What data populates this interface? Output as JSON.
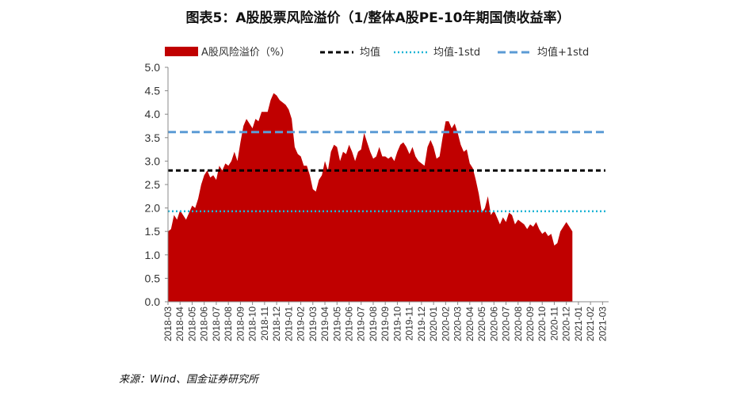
{
  "title": "图表5：A股股票风险溢价（1/整体A股PE-10年期国债收益率）",
  "source": "来源：Wind、国金证券研究所",
  "colors": {
    "area": "#c00000",
    "mean": "#000000",
    "minus": "#1fb5d6",
    "plus": "#5b9bd5"
  },
  "chart_data": {
    "type": "area",
    "title": "图表5：A股股票风险溢价（1/整体A股PE-10年期国债收益率）",
    "ylim": [
      0,
      5
    ],
    "yticks": [
      "0.0",
      "0.5",
      "1.0",
      "1.5",
      "2.0",
      "2.5",
      "3.0",
      "3.5",
      "4.0",
      "4.5",
      "5.0"
    ],
    "xticks": [
      "2018-03",
      "2018-04",
      "2018-05",
      "2018-06",
      "2018-07",
      "2018-08",
      "2018-09",
      "2018-10",
      "2018-11",
      "2018-12",
      "2019-01",
      "2019-02",
      "2019-03",
      "2019-04",
      "2019-05",
      "2019-06",
      "2019-07",
      "2019-08",
      "2019-09",
      "2019-10",
      "2019-11",
      "2019-12",
      "2020-01",
      "2020-02",
      "2020-03",
      "2020-04",
      "2020-05",
      "2020-06",
      "2020-07",
      "2020-08",
      "2020-09",
      "2020-10",
      "2020-11",
      "2020-12",
      "2021-01",
      "2021-02",
      "2021-03"
    ],
    "legend": [
      "A股风险溢价（%）",
      "均值",
      "均值-1std",
      "均值+1std"
    ],
    "legend_position": "top",
    "series": [
      {
        "name": "A股风险溢价（%）",
        "kind": "area",
        "points": [
          [
            0,
            1.5
          ],
          [
            0.25,
            1.55
          ],
          [
            0.5,
            1.85
          ],
          [
            0.75,
            1.75
          ],
          [
            1.0,
            1.95
          ],
          [
            1.25,
            1.85
          ],
          [
            1.5,
            1.75
          ],
          [
            1.75,
            1.9
          ],
          [
            2.0,
            2.05
          ],
          [
            2.25,
            2.0
          ],
          [
            2.5,
            2.2
          ],
          [
            2.75,
            2.5
          ],
          [
            3.0,
            2.7
          ],
          [
            3.25,
            2.8
          ],
          [
            3.5,
            2.65
          ],
          [
            3.75,
            2.7
          ],
          [
            4.0,
            2.6
          ],
          [
            4.25,
            2.9
          ],
          [
            4.5,
            2.8
          ],
          [
            4.75,
            2.95
          ],
          [
            5.0,
            2.9
          ],
          [
            5.25,
            3.0
          ],
          [
            5.5,
            3.2
          ],
          [
            5.75,
            3.0
          ],
          [
            6.0,
            3.4
          ],
          [
            6.25,
            3.75
          ],
          [
            6.5,
            3.9
          ],
          [
            6.75,
            3.8
          ],
          [
            7.0,
            3.7
          ],
          [
            7.25,
            3.9
          ],
          [
            7.5,
            3.85
          ],
          [
            7.75,
            4.05
          ],
          [
            8.0,
            4.05
          ],
          [
            8.25,
            4.05
          ],
          [
            8.5,
            4.3
          ],
          [
            8.75,
            4.45
          ],
          [
            9.0,
            4.4
          ],
          [
            9.25,
            4.3
          ],
          [
            9.5,
            4.25
          ],
          [
            9.75,
            4.2
          ],
          [
            10.0,
            4.1
          ],
          [
            10.25,
            3.9
          ],
          [
            10.5,
            3.3
          ],
          [
            10.75,
            3.15
          ],
          [
            11.0,
            3.1
          ],
          [
            11.25,
            2.9
          ],
          [
            11.5,
            2.9
          ],
          [
            11.75,
            2.7
          ],
          [
            12.0,
            2.4
          ],
          [
            12.25,
            2.35
          ],
          [
            12.5,
            2.6
          ],
          [
            12.75,
            2.7
          ],
          [
            13.0,
            3.0
          ],
          [
            13.25,
            2.8
          ],
          [
            13.5,
            3.2
          ],
          [
            13.75,
            3.35
          ],
          [
            14.0,
            3.3
          ],
          [
            14.25,
            3.0
          ],
          [
            14.5,
            3.2
          ],
          [
            14.75,
            3.15
          ],
          [
            15.0,
            3.35
          ],
          [
            15.25,
            3.2
          ],
          [
            15.5,
            3.0
          ],
          [
            15.75,
            3.2
          ],
          [
            16.0,
            3.25
          ],
          [
            16.25,
            3.6
          ],
          [
            16.5,
            3.4
          ],
          [
            16.75,
            3.2
          ],
          [
            17.0,
            3.05
          ],
          [
            17.25,
            3.1
          ],
          [
            17.5,
            3.3
          ],
          [
            17.75,
            3.1
          ],
          [
            18.0,
            3.1
          ],
          [
            18.25,
            3.05
          ],
          [
            18.5,
            3.1
          ],
          [
            18.75,
            3.0
          ],
          [
            19.0,
            3.2
          ],
          [
            19.25,
            3.35
          ],
          [
            19.5,
            3.4
          ],
          [
            19.75,
            3.3
          ],
          [
            20.0,
            3.15
          ],
          [
            20.25,
            3.3
          ],
          [
            20.5,
            3.1
          ],
          [
            20.75,
            3.0
          ],
          [
            21.0,
            2.95
          ],
          [
            21.25,
            2.9
          ],
          [
            21.5,
            3.3
          ],
          [
            21.75,
            3.45
          ],
          [
            22.0,
            3.3
          ],
          [
            22.25,
            3.05
          ],
          [
            22.5,
            3.1
          ],
          [
            22.75,
            3.5
          ],
          [
            23.0,
            3.85
          ],
          [
            23.25,
            3.85
          ],
          [
            23.5,
            3.7
          ],
          [
            23.75,
            3.8
          ],
          [
            24.0,
            3.6
          ],
          [
            24.25,
            3.35
          ],
          [
            24.5,
            3.2
          ],
          [
            24.75,
            3.25
          ],
          [
            25.0,
            2.95
          ],
          [
            25.25,
            2.85
          ],
          [
            25.5,
            2.6
          ],
          [
            25.75,
            2.3
          ],
          [
            26.0,
            1.9
          ],
          [
            26.25,
            2.0
          ],
          [
            26.5,
            2.25
          ],
          [
            26.75,
            1.85
          ],
          [
            27.0,
            1.95
          ],
          [
            27.25,
            1.8
          ],
          [
            27.5,
            1.65
          ],
          [
            27.75,
            1.8
          ],
          [
            28.0,
            1.7
          ],
          [
            28.25,
            1.9
          ],
          [
            28.5,
            1.85
          ],
          [
            28.75,
            1.65
          ],
          [
            29.0,
            1.75
          ],
          [
            29.25,
            1.7
          ],
          [
            29.5,
            1.65
          ],
          [
            29.75,
            1.55
          ],
          [
            30.0,
            1.65
          ],
          [
            30.25,
            1.6
          ],
          [
            30.5,
            1.7
          ],
          [
            30.75,
            1.55
          ],
          [
            31.0,
            1.45
          ],
          [
            31.25,
            1.5
          ],
          [
            31.5,
            1.4
          ],
          [
            31.75,
            1.45
          ],
          [
            32.0,
            1.2
          ],
          [
            32.25,
            1.25
          ],
          [
            32.5,
            1.5
          ],
          [
            32.75,
            1.6
          ],
          [
            33.0,
            1.7
          ],
          [
            33.25,
            1.6
          ],
          [
            33.5,
            1.5
          ]
        ]
      },
      {
        "name": "均值",
        "kind": "hline",
        "value": 2.8
      },
      {
        "name": "均值-1std",
        "kind": "hline",
        "value": 1.93
      },
      {
        "name": "均值+1std",
        "kind": "hline",
        "value": 3.62
      }
    ]
  }
}
